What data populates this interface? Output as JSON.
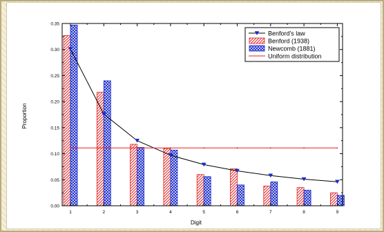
{
  "chart_data": {
    "type": "bar",
    "title": "",
    "xlabel": "Digit",
    "ylabel": "Proportion",
    "categories": [
      "1",
      "2",
      "3",
      "4",
      "5",
      "6",
      "7",
      "8",
      "9"
    ],
    "ylim": [
      0,
      0.35
    ],
    "yticks": [
      "0.00",
      "0.05",
      "0.10",
      "0.15",
      "0.20",
      "0.25",
      "0.30",
      "0.35"
    ],
    "grid": false,
    "legend_position": "top-right",
    "series": [
      {
        "name": "Benford's law",
        "kind": "line",
        "color": "#000000",
        "marker_color": "#1a2ccc",
        "marker": "down-triangle",
        "values": [
          0.301,
          0.176,
          0.125,
          0.097,
          0.079,
          0.067,
          0.058,
          0.051,
          0.046
        ]
      },
      {
        "name": "Benford (1938)",
        "kind": "bar",
        "color": "#e02020",
        "pattern": "diagonal-hatch",
        "values": [
          0.327,
          0.218,
          0.118,
          0.11,
          0.06,
          0.071,
          0.038,
          0.035,
          0.025
        ]
      },
      {
        "name": "Newcomb (1881)",
        "kind": "bar",
        "color": "#1a2ccc",
        "pattern": "crosshatch",
        "values": [
          0.347,
          0.24,
          0.112,
          0.107,
          0.056,
          0.04,
          0.046,
          0.03,
          0.02
        ]
      },
      {
        "name": "Uniform distribution",
        "kind": "line",
        "color": "#e02020",
        "values": [
          0.111,
          0.111,
          0.111,
          0.111,
          0.111,
          0.111,
          0.111,
          0.111,
          0.111
        ]
      }
    ]
  }
}
